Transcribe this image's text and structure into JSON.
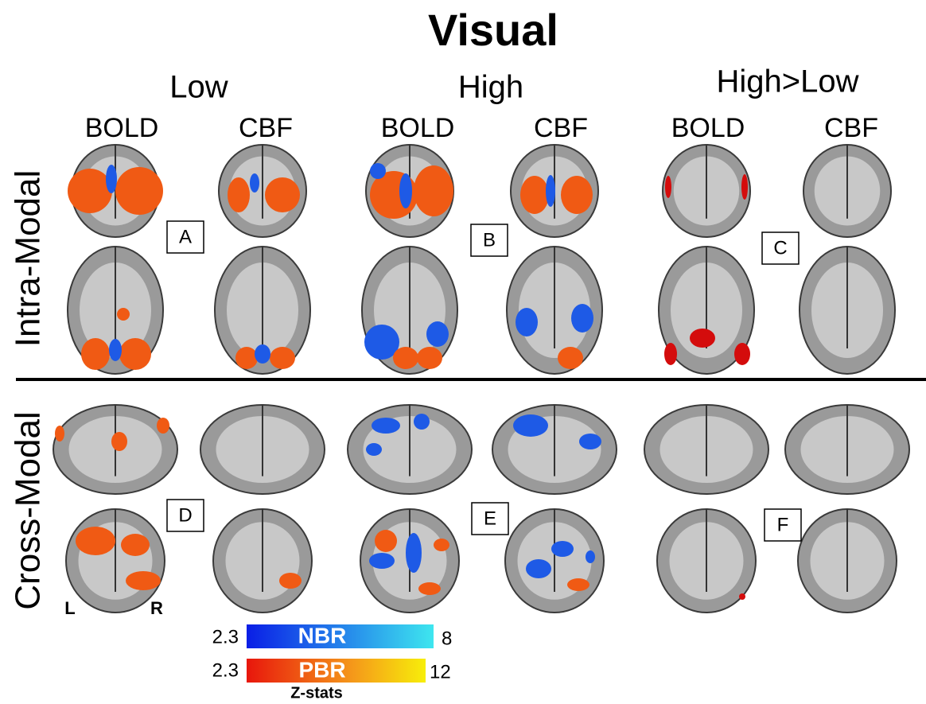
{
  "title": "Visual",
  "columns": [
    {
      "group": "Low",
      "modalities": [
        "BOLD",
        "CBF"
      ]
    },
    {
      "group": "High",
      "modalities": [
        "BOLD",
        "CBF"
      ]
    },
    {
      "group": "High>Low",
      "modalities": [
        "BOLD",
        "CBF"
      ]
    }
  ],
  "rows": [
    "Intra-Modal",
    "Cross-Modal"
  ],
  "panels": [
    "A",
    "B",
    "C",
    "D",
    "E",
    "F"
  ],
  "orientation": [
    "L",
    "R"
  ],
  "colorbars": [
    {
      "label": "NBR",
      "min": 2.3,
      "max": 8
    },
    {
      "label": "PBR",
      "min": 2.3,
      "max": 12
    }
  ],
  "colorbar_title": "Z-stats"
}
